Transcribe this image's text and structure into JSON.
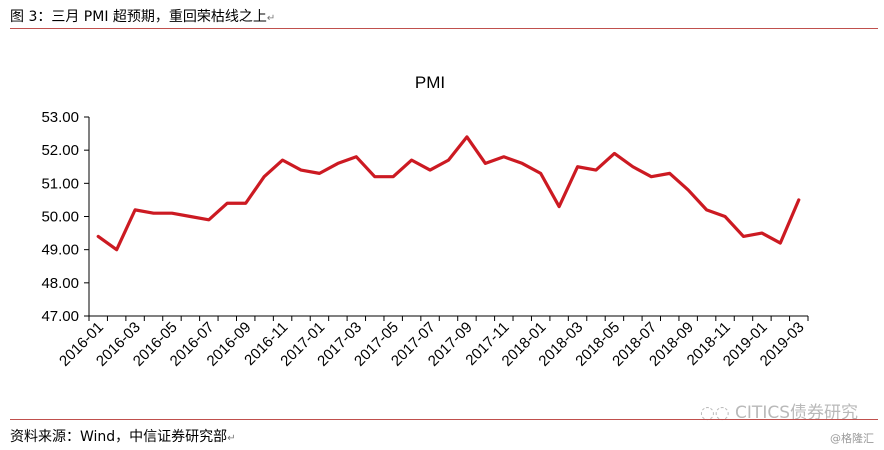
{
  "header": {
    "caption": "图 3：三月 PMI 超预期，重回荣枯线之上"
  },
  "footer": {
    "source": "资料来源：Wind，中信证券研究部",
    "watermark": "CITICS债券研究",
    "watermark2": "@格隆汇"
  },
  "chart_data": {
    "type": "line",
    "title": "PMI",
    "xlabel": "",
    "ylabel": "",
    "ylim": [
      47.0,
      53.0
    ],
    "yticks": [
      "47.00",
      "48.00",
      "49.00",
      "50.00",
      "51.00",
      "52.00",
      "53.00"
    ],
    "xtick_labels": [
      "2016-01",
      "2016-03",
      "2016-05",
      "2016-07",
      "2016-09",
      "2016-11",
      "2017-01",
      "2017-03",
      "2017-05",
      "2017-07",
      "2017-09",
      "2017-11",
      "2018-01",
      "2018-03",
      "2018-05",
      "2018-07",
      "2018-09",
      "2018-11",
      "2019-01",
      "2019-03"
    ],
    "line_color": "#cc1a22",
    "grid": false,
    "x": [
      "2016-01",
      "2016-02",
      "2016-03",
      "2016-04",
      "2016-05",
      "2016-06",
      "2016-07",
      "2016-08",
      "2016-09",
      "2016-10",
      "2016-11",
      "2016-12",
      "2017-01",
      "2017-02",
      "2017-03",
      "2017-04",
      "2017-05",
      "2017-06",
      "2017-07",
      "2017-08",
      "2017-09",
      "2017-10",
      "2017-11",
      "2017-12",
      "2018-01",
      "2018-02",
      "2018-03",
      "2018-04",
      "2018-05",
      "2018-06",
      "2018-07",
      "2018-08",
      "2018-09",
      "2018-10",
      "2018-11",
      "2018-12",
      "2019-01",
      "2019-02",
      "2019-03"
    ],
    "series": [
      {
        "values": [
          49.4,
          49.0,
          50.2,
          50.1,
          50.1,
          50.0,
          49.9,
          50.4,
          50.4,
          51.2,
          51.7,
          51.4,
          51.3,
          51.6,
          51.8,
          51.2,
          51.2,
          51.7,
          51.4,
          51.7,
          52.4,
          51.6,
          51.8,
          51.6,
          51.3,
          50.3,
          51.5,
          51.4,
          51.9,
          51.5,
          51.2,
          51.3,
          50.8,
          50.2,
          50.0,
          49.4,
          49.5,
          49.2,
          50.5
        ]
      }
    ]
  }
}
